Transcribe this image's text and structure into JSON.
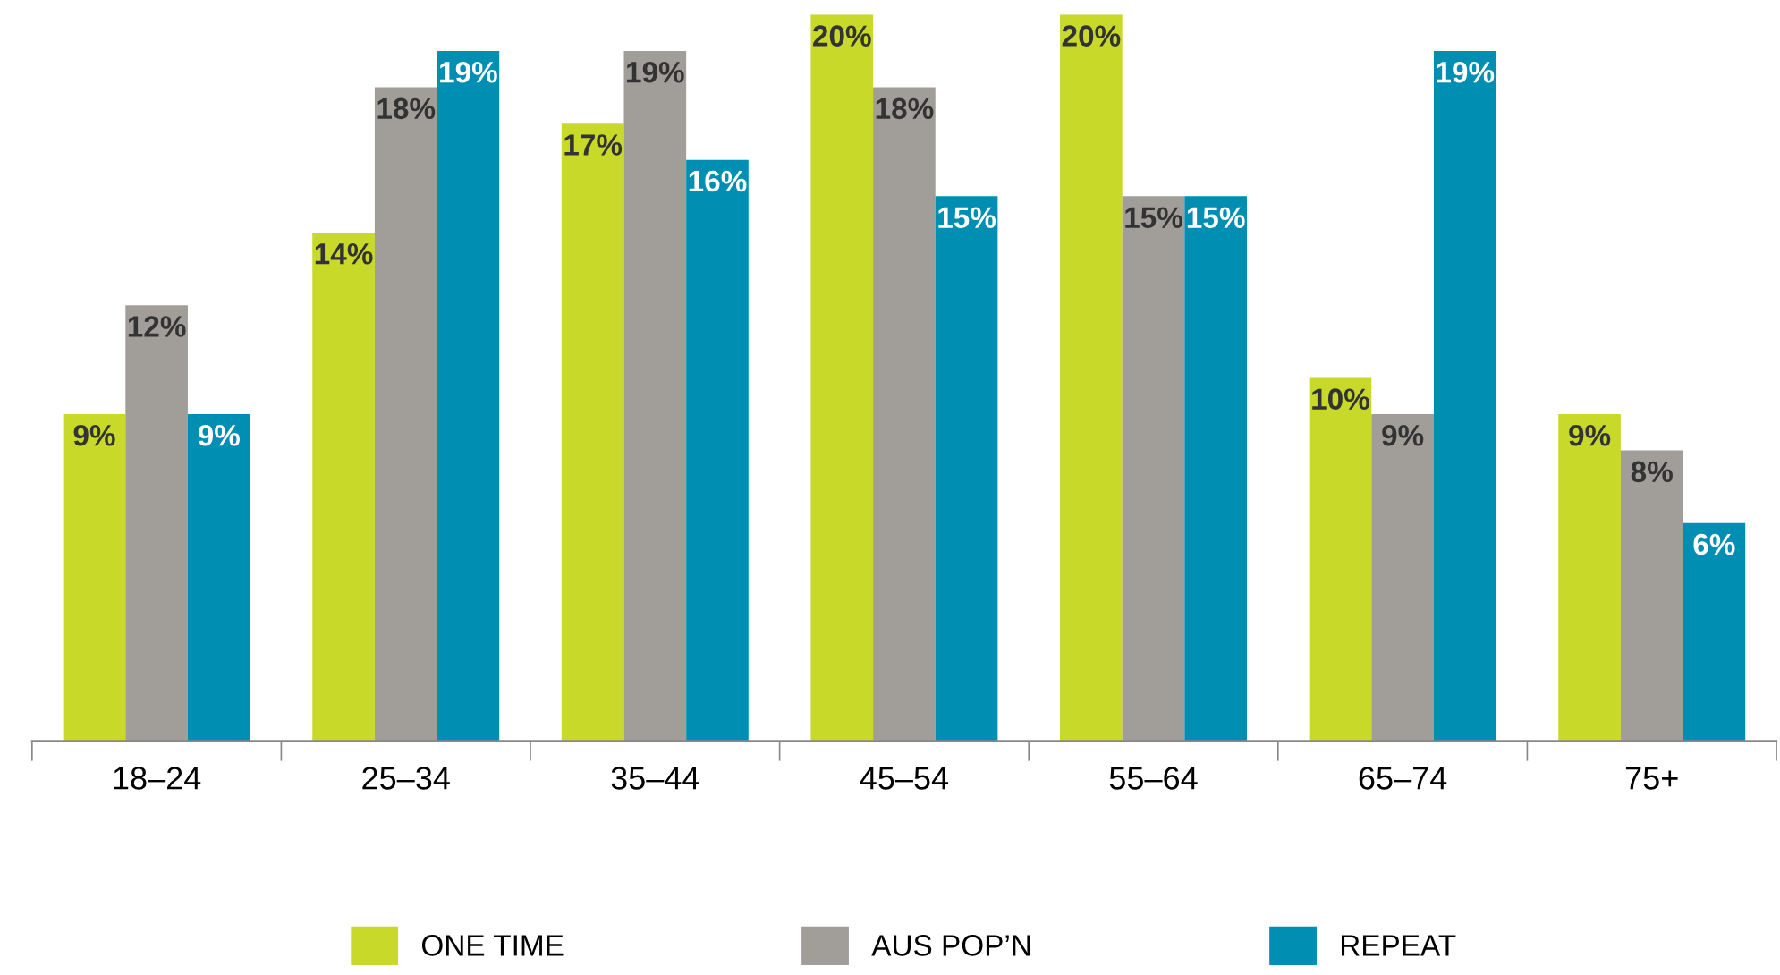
{
  "chart_data": {
    "type": "bar",
    "categories": [
      "18–24",
      "25–34",
      "35–44",
      "45–54",
      "55–64",
      "65–74",
      "75+"
    ],
    "series": [
      {
        "name": "ONE TIME",
        "color": "#c8d92a",
        "values": [
          9,
          14,
          17,
          20,
          20,
          10,
          9
        ],
        "value_labels": [
          "9%",
          "14%",
          "17%",
          "20%",
          "20%",
          "10%",
          "9%"
        ]
      },
      {
        "name": "AUS POP’N",
        "color": "#a19d99",
        "values": [
          12,
          18,
          19,
          18,
          15,
          9,
          8
        ],
        "value_labels": [
          "12%",
          "18%",
          "19%",
          "18%",
          "15%",
          "9%",
          "8%"
        ]
      },
      {
        "name": "REPEAT",
        "color": "#008fb3",
        "values": [
          9,
          19,
          16,
          15,
          15,
          19,
          6
        ],
        "value_labels": [
          "9%",
          "19%",
          "16%",
          "15%",
          "15%",
          "19%",
          "6%"
        ]
      }
    ],
    "legend": "bottom",
    "grid": false
  }
}
